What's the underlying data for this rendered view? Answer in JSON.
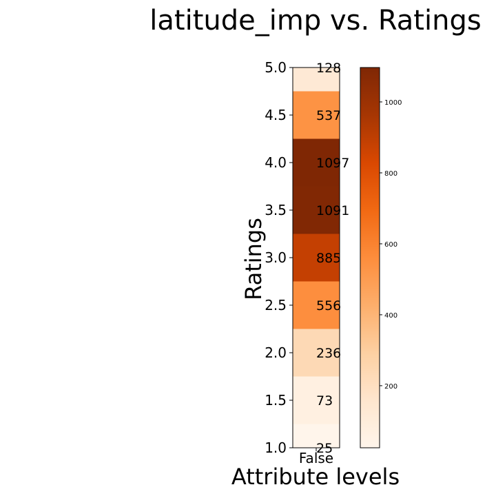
{
  "chart_data": {
    "type": "heatmap",
    "title": "latitude_imp vs. Ratings",
    "xlabel": "Attribute levels",
    "ylabel": "Ratings",
    "x_categories": [
      "False"
    ],
    "y_values": [
      1.0,
      1.5,
      2.0,
      2.5,
      3.0,
      3.5,
      4.0,
      4.5,
      5.0
    ],
    "values": [
      25,
      73,
      236,
      556,
      885,
      1091,
      1097,
      537,
      128
    ],
    "ylim": [
      1.0,
      5.0
    ],
    "y_ticks": [
      "1.0",
      "1.5",
      "2.0",
      "2.5",
      "3.0",
      "3.5",
      "4.0",
      "4.5",
      "5.0"
    ],
    "colormap": "Oranges",
    "colorbar": {
      "range": [
        25,
        1097
      ],
      "ticks": [
        200,
        400,
        600,
        800,
        1000
      ],
      "tick_labels": [
        "200",
        "400",
        "600",
        "800",
        "1000"
      ]
    }
  }
}
